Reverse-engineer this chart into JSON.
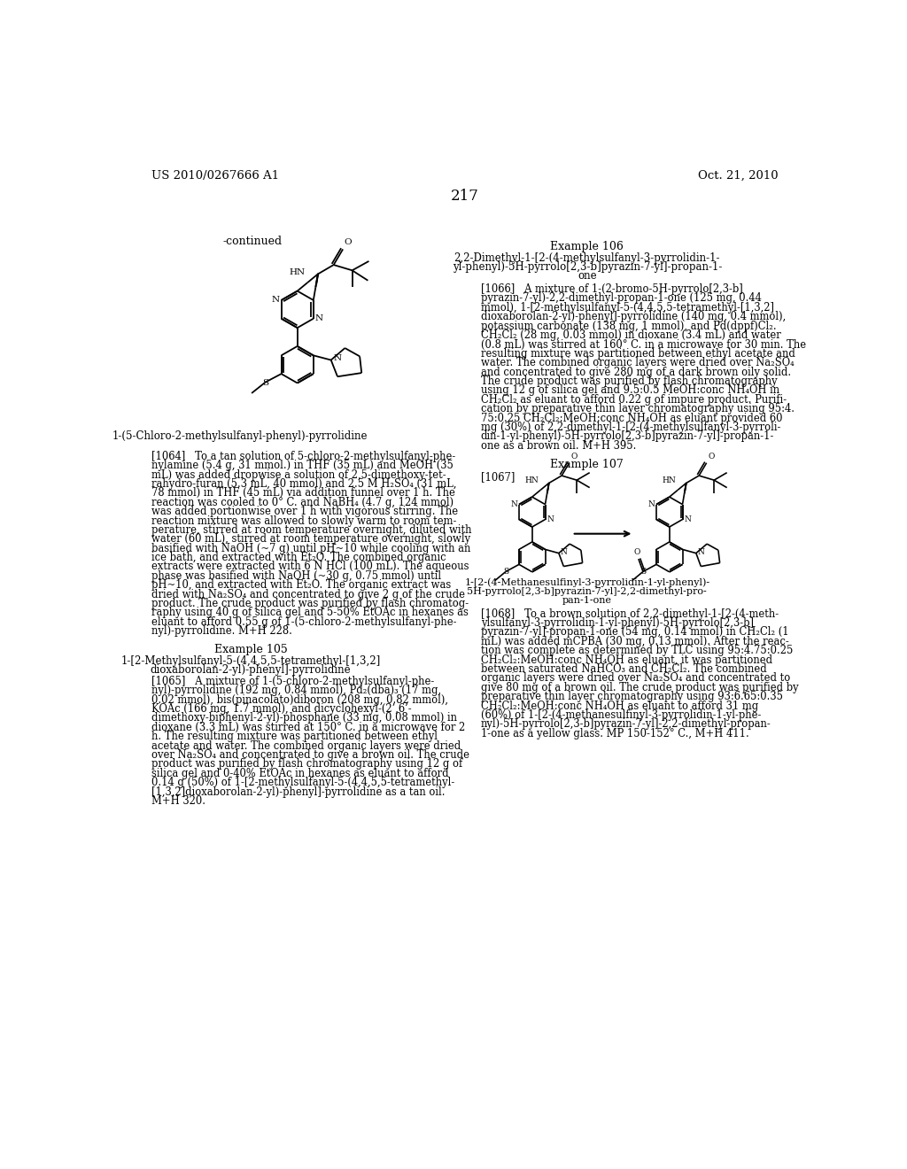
{
  "page_number": "217",
  "patent_left": "US 2010/0267666 A1",
  "patent_right": "Oct. 21, 2010",
  "continued_label": "-continued",
  "structure1_caption": "1-(5-Chloro-2-methylsulfanyl-phenyl)-pyrrolidine",
  "example105_title": "Example 105",
  "example105_sub1": "1-[2-Methylsulfanyl-5-(4,4,5,5-tetramethyl-[1,3,2]",
  "example105_sub2": "dioxaborolan-2-yl)-phenyl]-pyrrolidine",
  "example106_title": "Example 106",
  "example106_sub1": "2,2-Dimethyl-1-[2-(4-methylsulfanyl-3-pyrrolidin-1-",
  "example106_sub2": "yl-phenyl)-5H-pyrrolo[2,3-b]pyrazin-7-yl]-propan-1-",
  "example106_sub3": "one",
  "example107_title": "Example 107",
  "example107_sub1": "1-[2-(4-Methanesulfinyl-3-pyrrolidin-1-yl-phenyl)-",
  "example107_sub2": "5H-pyrrolo[2,3-b]pyrazin-7-yl]-2,2-dimethyl-pro-",
  "example107_sub3": "pan-1-one",
  "para1064_lines": [
    "[1064]   To a tan solution of 5-chloro-2-methylsulfanyl-phe-",
    "nylamine (5.4 g, 31 mmol.) in THF (35 mL) and MeOH (35",
    "mL) was added dropwise a solution of 2,5-dimethoxy-tet-",
    "rahydro-furan (5.3 mL, 40 mmol) and 2.5 M H₂SO₄ (31 mL,",
    "78 mmol) in THF (45 mL) via addition funnel over 1 h. The",
    "reaction was cooled to 0° C. and NaBH₄ (4.7 g, 124 mmol)",
    "was added portionwise over 1 h with vigorous stirring. The",
    "reaction mixture was allowed to slowly warm to room tem-",
    "perature, stirred at room temperature overnight, diluted with",
    "water (60 mL), stirred at room temperature overnight, slowly",
    "basified with NaOH (~7 g) until pH~10 while cooling with an",
    "ice bath, and extracted with Et₂O. The combined organic",
    "extracts were extracted with 6 N HCl (100 mL). The aqueous",
    "phase was basified with NaOH (~30 g, 0.75 mmol) until",
    "pH~10, and extracted with Et₂O. The organic extract was",
    "dried with Na₂SO₄ and concentrated to give 2 g of the crude",
    "product. The crude product was purified by flash chromatog-",
    "raphy using 40 g of silica gel and 5-50% EtOAc in hexanes as",
    "eluant to afford 0.55 g of 1-(5-chloro-2-methylsulfanyl-phe-",
    "nyl)-pyrrolidine. M+H 228."
  ],
  "para1065_lines": [
    "[1065]   A mixture of 1-(5-chloro-2-methylsulfanyl-phe-",
    "nyl)-pyrrolidine (192 mg, 0.84 mmol), Pd₂(dba)₃ (17 mg,",
    "0.02 mmol), bis(pinacolato)diboron (208 mg, 0.82 mmol),",
    "KOAc (166 mg, 1.7 mmol), and dicyclohexyl-(2’,6’-",
    "dimethoxy-biphenyl-2-yl)-phosphane (33 mg, 0.08 mmol) in",
    "dioxane (3.3 mL) was stirred at 150° C. in a microwave for 2",
    "h. The resulting mixture was partitioned between ethyl",
    "acetate and water. The combined organic layers were dried",
    "over Na₂SO₄ and concentrated to give a brown oil. The crude",
    "product was purified by flash chromatography using 12 g of",
    "silica gel and 0-40% EtOAc in hexanes as eluant to afford",
    "0.14 g (50%) of 1-[2-methylsulfanyl-5-(4,4,5,5-tetramethyl-",
    "[1,3,2]dioxaborolan-2-yl)-phenyl]-pyrrolidine as a tan oil.",
    "M+H 320."
  ],
  "para1066_lines": [
    "[1066]   A mixture of 1-(2-bromo-5H-pyrrolo[2,3-b]",
    "pyrazin-7-yl)-2,2-dimethyl-propan-1-one (125 mg, 0.44",
    "mmol), 1-[2-methylsulfanyl-5-(4,4,5,5-tetramethyl-[1,3,2]",
    "dioxaborolan-2-yl)-phenyl]-pyrrolidine (140 mg, 0.4 mmol),",
    "potassium carbonate (138 mg, 1 mmol), and Pd(dppf)Cl₂.",
    "CH₂Cl₂ (28 mg, 0.03 mmol) in dioxane (3.4 mL) and water",
    "(0.8 mL) was stirred at 160° C. in a microwave for 30 min. The",
    "resulting mixture was partitioned between ethyl acetate and",
    "water. The combined organic layers were dried over Na₂SO₄",
    "and concentrated to give 280 mg of a dark brown oily solid.",
    "The crude product was purified by flash chromatography",
    "using 12 g of silica gel and 9.5:0.5 MeOH:conc NH₄OH in",
    "CH₂Cl₂ as eluant to afford 0.22 g of impure product. Purifi-",
    "cation by preparative thin layer chromatography using 95:4.",
    "75:0.25 CH₂Cl₂:MeOH:conc NH₄OH as eluant provided 60",
    "mg (30%) of 2,2-dimethyl-1-[2-(4-methylsulfanyl-3-pyrroli-",
    "din-1-yl-phenyl)-5H-pyrrolo[2,3-b]pyrazin-7-yl]-propan-1-",
    "one as a brown oil. M+H 395."
  ],
  "para1067": "[1067]",
  "para1068_lines": [
    "[1068]   To a brown solution of 2,2-dimethyl-1-[2-(4-meth-",
    "ylsulfanyl-3-pyrrolidin-1-yl-phenyl)-5H-pyrrolo[2,3-b]",
    "pyrazin-7-yl]-propan-1-one (54 mg, 0.14 mmol) in CH₂Cl₂ (1",
    "mL) was added mCPBA (30 mg, 0.13 mmol). After the reac-",
    "tion was complete as determined by TLC using 95:4.75:0.25",
    "CH₂Cl₂:MeOH:conc NH₄OH as eluant, it was partitioned",
    "between saturated NaHCO₃ and CH₂Cl₂. The combined",
    "organic layers were dried over Na₂SO₄ and concentrated to",
    "give 80 mg of a brown oil. The crude product was purified by",
    "preparative thin layer chromatography using 93:6.65:0.35",
    "CH₂Cl₂:MeOH:conc NH₄OH as eluant to afford 31 mg",
    "(60%) of 1-[2-(4-methanesulfinyl-3-pyrrolidin-1-yl-phe-",
    "nyl)-5H-pyrrolo[2,3-b]pyrazin-7-yl]-2,2-dimethyl-propan-",
    "1-one as a yellow glass. MP 150-152° C., M+H 411."
  ],
  "bg_color": "#ffffff",
  "lh": 13.5
}
